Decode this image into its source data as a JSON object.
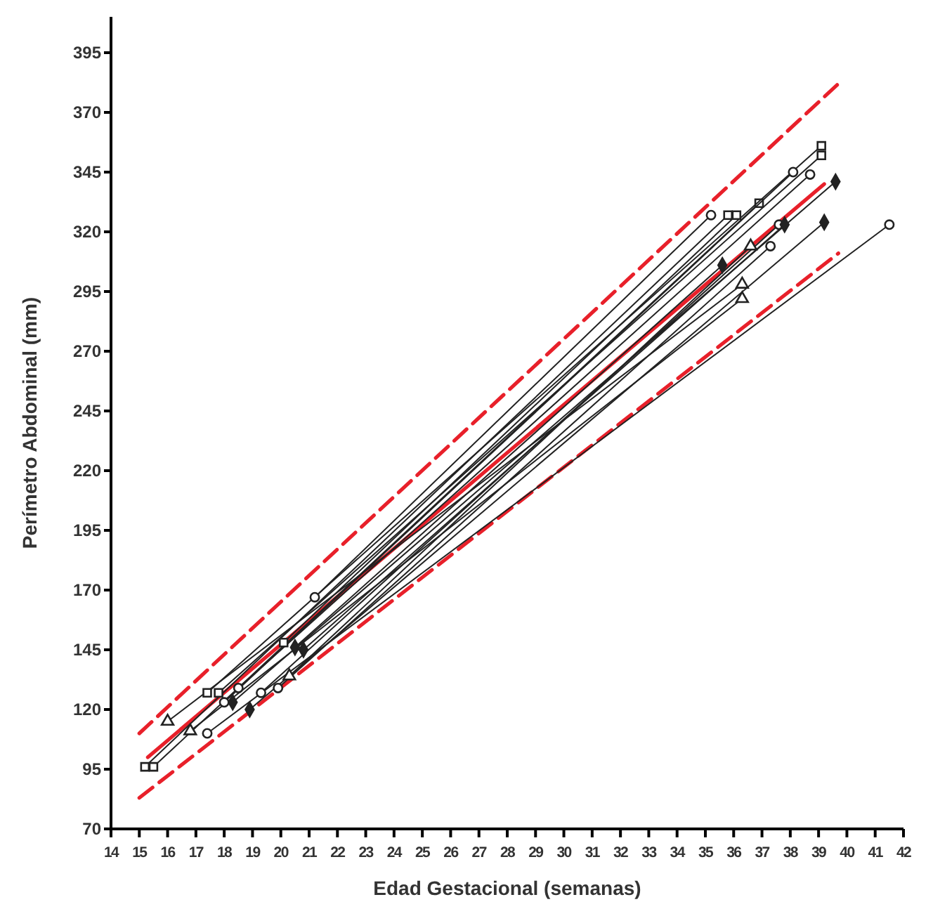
{
  "chart_data": {
    "type": "line",
    "xlabel": "Edad Gestacional (semanas)",
    "ylabel": "Perímetro Abdominal (mm)",
    "xlim": [
      14,
      42
    ],
    "xticks": [
      14,
      15,
      16,
      17,
      18,
      19,
      20,
      21,
      22,
      23,
      24,
      25,
      26,
      27,
      28,
      29,
      30,
      31,
      32,
      33,
      34,
      35,
      36,
      37,
      38,
      39,
      40,
      41,
      42
    ],
    "ylim": [
      70,
      410
    ],
    "yticks": [
      70,
      95,
      120,
      145,
      170,
      195,
      220,
      245,
      270,
      295,
      320,
      345,
      370,
      395
    ],
    "grid": false,
    "series": [
      {
        "color": "#e8202a",
        "x": [
          15,
          39.7
        ],
        "values": [
          110,
          382
        ],
        "line_style": "dashed",
        "marker": "none"
      },
      {
        "color": "#e8202a",
        "x": [
          15,
          39.7
        ],
        "values": [
          83,
          311
        ],
        "line_style": "dashed",
        "marker": "none"
      },
      {
        "color": "#e8202a",
        "x": [
          15.3,
          39.2
        ],
        "values": [
          100,
          340
        ],
        "line_style": "solid",
        "marker": "none"
      },
      {
        "color": "#222222",
        "x": [
          15.2,
          35.8
        ],
        "values": [
          96,
          327
        ],
        "marker": "square"
      },
      {
        "color": "#222222",
        "x": [
          15.5,
          36.9
        ],
        "values": [
          96,
          332
        ],
        "marker": "square"
      },
      {
        "color": "#222222",
        "x": [
          16.0,
          36.3
        ],
        "values": [
          115,
          298
        ],
        "marker": "triangle"
      },
      {
        "color": "#222222",
        "x": [
          16.8,
          36.3
        ],
        "values": [
          111,
          292
        ],
        "marker": "triangle"
      },
      {
        "color": "#222222",
        "x": [
          17.4,
          41.5
        ],
        "values": [
          110,
          323
        ],
        "marker": "circle"
      },
      {
        "color": "#222222",
        "x": [
          17.4,
          39.1
        ],
        "values": [
          127,
          356
        ],
        "marker": "square"
      },
      {
        "color": "#222222",
        "x": [
          17.8,
          39.1
        ],
        "values": [
          127,
          352
        ],
        "marker": "square"
      },
      {
        "color": "#222222",
        "x": [
          18.0,
          38.1
        ],
        "values": [
          123,
          345
        ],
        "marker": "circle"
      },
      {
        "color": "#222222",
        "x": [
          18.3,
          39.6
        ],
        "values": [
          123,
          341
        ],
        "marker": "diamond"
      },
      {
        "color": "#222222",
        "x": [
          18.5,
          38.7
        ],
        "values": [
          129,
          344
        ],
        "marker": "circle"
      },
      {
        "color": "#222222",
        "x": [
          18.9,
          39.2
        ],
        "values": [
          120,
          324
        ],
        "marker": "diamond"
      },
      {
        "color": "#222222",
        "x": [
          19.3,
          37.6
        ],
        "values": [
          127,
          323
        ],
        "marker": "circle"
      },
      {
        "color": "#222222",
        "x": [
          19.9,
          37.3
        ],
        "values": [
          129,
          314
        ],
        "marker": "circle"
      },
      {
        "color": "#222222",
        "x": [
          20.3,
          36.6
        ],
        "values": [
          134,
          314
        ],
        "marker": "triangle"
      },
      {
        "color": "#222222",
        "x": [
          20.1,
          36.1
        ],
        "values": [
          148,
          327
        ],
        "marker": "square"
      },
      {
        "color": "#222222",
        "x": [
          20.5,
          35.6
        ],
        "values": [
          146,
          306
        ],
        "marker": "diamond"
      },
      {
        "color": "#222222",
        "x": [
          21.2,
          35.2
        ],
        "values": [
          167,
          327
        ],
        "marker": "circle"
      },
      {
        "color": "#222222",
        "x": [
          20.8,
          37.8
        ],
        "values": [
          145,
          323
        ],
        "marker": "diamond"
      }
    ]
  }
}
